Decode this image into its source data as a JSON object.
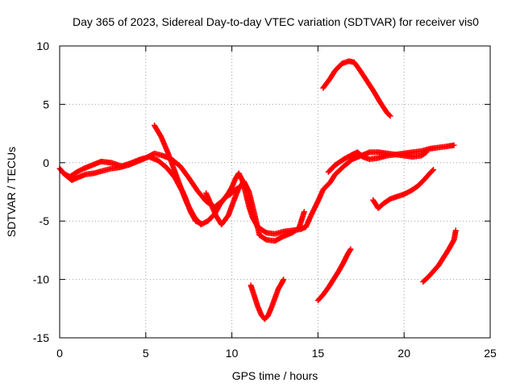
{
  "chart_data": {
    "type": "scatter",
    "title": "Day 365 of 2023, Sidereal Day-to-day VTEC variation (SDTVAR) for receiver vis0",
    "xlabel": "GPS time / hours",
    "ylabel": "SDTVAR / TECUs",
    "xlim": [
      0,
      25
    ],
    "ylim": [
      -15,
      10
    ],
    "xticks": [
      0,
      5,
      10,
      15,
      20,
      25
    ],
    "yticks": [
      -15,
      -10,
      -5,
      0,
      5,
      10
    ],
    "xtick_labels": [
      "0",
      "5",
      "10",
      "15",
      "20",
      "25"
    ],
    "ytick_labels": [
      "-15",
      "-10",
      "-5",
      "0",
      "5",
      "10"
    ],
    "grid": true,
    "marker": "+",
    "color": "#ff0000",
    "series": [
      {
        "points": [
          [
            0.0,
            -0.5
          ],
          [
            0.3,
            -1.0
          ],
          [
            0.7,
            -1.5
          ],
          [
            1.0,
            -1.3
          ],
          [
            1.5,
            -1.0
          ],
          [
            2.0,
            -0.9
          ],
          [
            2.5,
            -0.7
          ],
          [
            3.0,
            -0.5
          ],
          [
            3.5,
            -0.4
          ],
          [
            4.0,
            -0.2
          ],
          [
            4.5,
            0.1
          ],
          [
            5.0,
            0.4
          ],
          [
            5.5,
            0.8
          ],
          [
            6.0,
            0.6
          ],
          [
            6.5,
            0.3
          ],
          [
            7.0,
            -0.3
          ],
          [
            7.5,
            -1.3
          ],
          [
            8.0,
            -2.4
          ],
          [
            8.5,
            -3.3
          ],
          [
            9.0,
            -3.8
          ],
          [
            9.5,
            -3.2
          ],
          [
            9.8,
            -2.6
          ],
          [
            10.0,
            -2.1
          ],
          [
            10.2,
            -1.4
          ],
          [
            10.4,
            -0.9
          ],
          [
            10.6,
            -1.5
          ],
          [
            10.8,
            -2.6
          ],
          [
            11.0,
            -3.8
          ],
          [
            11.2,
            -4.7
          ],
          [
            11.5,
            -5.5
          ],
          [
            12.0,
            -6.0
          ],
          [
            12.5,
            -6.1
          ],
          [
            13.0,
            -5.9
          ],
          [
            13.5,
            -5.8
          ],
          [
            14.0,
            -5.7
          ],
          [
            14.3,
            -5.5
          ],
          [
            14.6,
            -4.5
          ],
          [
            15.0,
            -3.3
          ],
          [
            15.3,
            -2.3
          ],
          [
            15.7,
            -1.7
          ],
          [
            16.0,
            -1.0
          ],
          [
            16.5,
            -0.3
          ],
          [
            17.0,
            0.3
          ],
          [
            17.5,
            0.6
          ],
          [
            18.0,
            0.9
          ],
          [
            18.5,
            0.9
          ],
          [
            19.0,
            0.8
          ],
          [
            19.5,
            0.7
          ],
          [
            20.0,
            0.8
          ],
          [
            20.5,
            0.9
          ],
          [
            21.0,
            1.0
          ],
          [
            21.5,
            1.2
          ],
          [
            22.0,
            1.3
          ],
          [
            22.5,
            1.4
          ],
          [
            22.9,
            1.5
          ]
        ]
      },
      {
        "points": [
          [
            0.2,
            -0.9
          ],
          [
            0.6,
            -1.2
          ],
          [
            1.0,
            -0.8
          ],
          [
            1.4,
            -0.5
          ],
          [
            1.9,
            -0.2
          ],
          [
            2.4,
            0.1
          ],
          [
            3.0,
            0.0
          ],
          [
            3.6,
            -0.3
          ],
          [
            4.2,
            0.0
          ],
          [
            4.7,
            0.3
          ],
          [
            5.2,
            0.5
          ],
          [
            5.7,
            0.2
          ],
          [
            6.2,
            -0.4
          ],
          [
            6.7,
            -1.3
          ],
          [
            7.1,
            -2.4
          ],
          [
            7.4,
            -3.5
          ],
          [
            7.8,
            -4.6
          ],
          [
            8.2,
            -5.3
          ],
          [
            8.6,
            -5.0
          ],
          [
            9.0,
            -4.4
          ],
          [
            9.3,
            -3.6
          ],
          [
            9.6,
            -3.0
          ],
          [
            10.0,
            -2.6
          ],
          [
            10.3,
            -2.2
          ]
        ]
      },
      {
        "points": [
          [
            5.5,
            3.2
          ],
          [
            5.9,
            2.2
          ],
          [
            6.3,
            0.8
          ],
          [
            6.7,
            -0.8
          ],
          [
            7.0,
            -2.0
          ],
          [
            7.3,
            -3.0
          ],
          [
            7.6,
            -4.2
          ],
          [
            7.9,
            -5.0
          ],
          [
            8.2,
            -5.2
          ]
        ]
      },
      {
        "points": [
          [
            8.5,
            -2.6
          ],
          [
            8.8,
            -3.6
          ],
          [
            9.1,
            -4.6
          ],
          [
            9.4,
            -5.3
          ],
          [
            9.8,
            -4.5
          ],
          [
            10.1,
            -3.3
          ],
          [
            10.4,
            -2.2
          ],
          [
            10.7,
            -1.6
          ],
          [
            11.0,
            -2.5
          ],
          [
            11.3,
            -4.3
          ],
          [
            11.6,
            -6.2
          ],
          [
            12.0,
            -6.6
          ],
          [
            12.5,
            -6.7
          ],
          [
            13.0,
            -6.3
          ],
          [
            13.5,
            -6.0
          ],
          [
            13.9,
            -5.6
          ],
          [
            14.2,
            -4.2
          ]
        ]
      },
      {
        "points": [
          [
            15.6,
            -0.8
          ],
          [
            16.0,
            -0.2
          ],
          [
            16.5,
            0.3
          ],
          [
            17.0,
            0.7
          ],
          [
            17.3,
            0.9
          ],
          [
            17.6,
            0.5
          ],
          [
            18.0,
            0.3
          ],
          [
            18.5,
            0.4
          ],
          [
            19.0,
            0.6
          ],
          [
            19.5,
            0.7
          ],
          [
            20.0,
            0.6
          ],
          [
            20.5,
            0.5
          ],
          [
            21.0,
            0.6
          ],
          [
            21.3,
            0.9
          ]
        ]
      },
      {
        "points": [
          [
            15.3,
            6.4
          ],
          [
            15.7,
            7.2
          ],
          [
            16.0,
            7.9
          ],
          [
            16.4,
            8.5
          ],
          [
            16.8,
            8.7
          ],
          [
            17.1,
            8.6
          ],
          [
            17.4,
            8.0
          ],
          [
            17.8,
            7.1
          ],
          [
            18.2,
            6.2
          ],
          [
            18.6,
            5.2
          ],
          [
            19.0,
            4.3
          ],
          [
            19.2,
            4.0
          ]
        ]
      },
      {
        "points": [
          [
            18.2,
            -3.2
          ],
          [
            18.5,
            -3.9
          ],
          [
            18.8,
            -3.5
          ],
          [
            19.2,
            -3.1
          ],
          [
            19.6,
            -2.9
          ],
          [
            20.0,
            -2.7
          ],
          [
            20.4,
            -2.4
          ],
          [
            20.8,
            -2.0
          ],
          [
            21.2,
            -1.4
          ],
          [
            21.5,
            -0.9
          ],
          [
            21.7,
            -0.6
          ]
        ]
      },
      {
        "points": [
          [
            11.1,
            -10.5
          ],
          [
            11.3,
            -11.4
          ],
          [
            11.5,
            -12.3
          ],
          [
            11.7,
            -13.0
          ],
          [
            11.9,
            -13.4
          ],
          [
            12.1,
            -13.1
          ],
          [
            12.3,
            -12.4
          ],
          [
            12.5,
            -11.6
          ],
          [
            12.7,
            -10.8
          ],
          [
            12.9,
            -10.3
          ],
          [
            13.0,
            -10.0
          ]
        ]
      },
      {
        "points": [
          [
            15.0,
            -11.8
          ],
          [
            15.3,
            -11.3
          ],
          [
            15.6,
            -10.7
          ],
          [
            15.9,
            -10.0
          ],
          [
            16.2,
            -9.3
          ],
          [
            16.5,
            -8.5
          ],
          [
            16.7,
            -7.9
          ],
          [
            16.9,
            -7.4
          ]
        ]
      },
      {
        "points": [
          [
            21.1,
            -10.2
          ],
          [
            21.4,
            -9.8
          ],
          [
            21.7,
            -9.3
          ],
          [
            22.0,
            -8.8
          ],
          [
            22.3,
            -8.1
          ],
          [
            22.6,
            -7.4
          ],
          [
            22.9,
            -6.6
          ],
          [
            23.0,
            -5.8
          ]
        ]
      }
    ]
  }
}
